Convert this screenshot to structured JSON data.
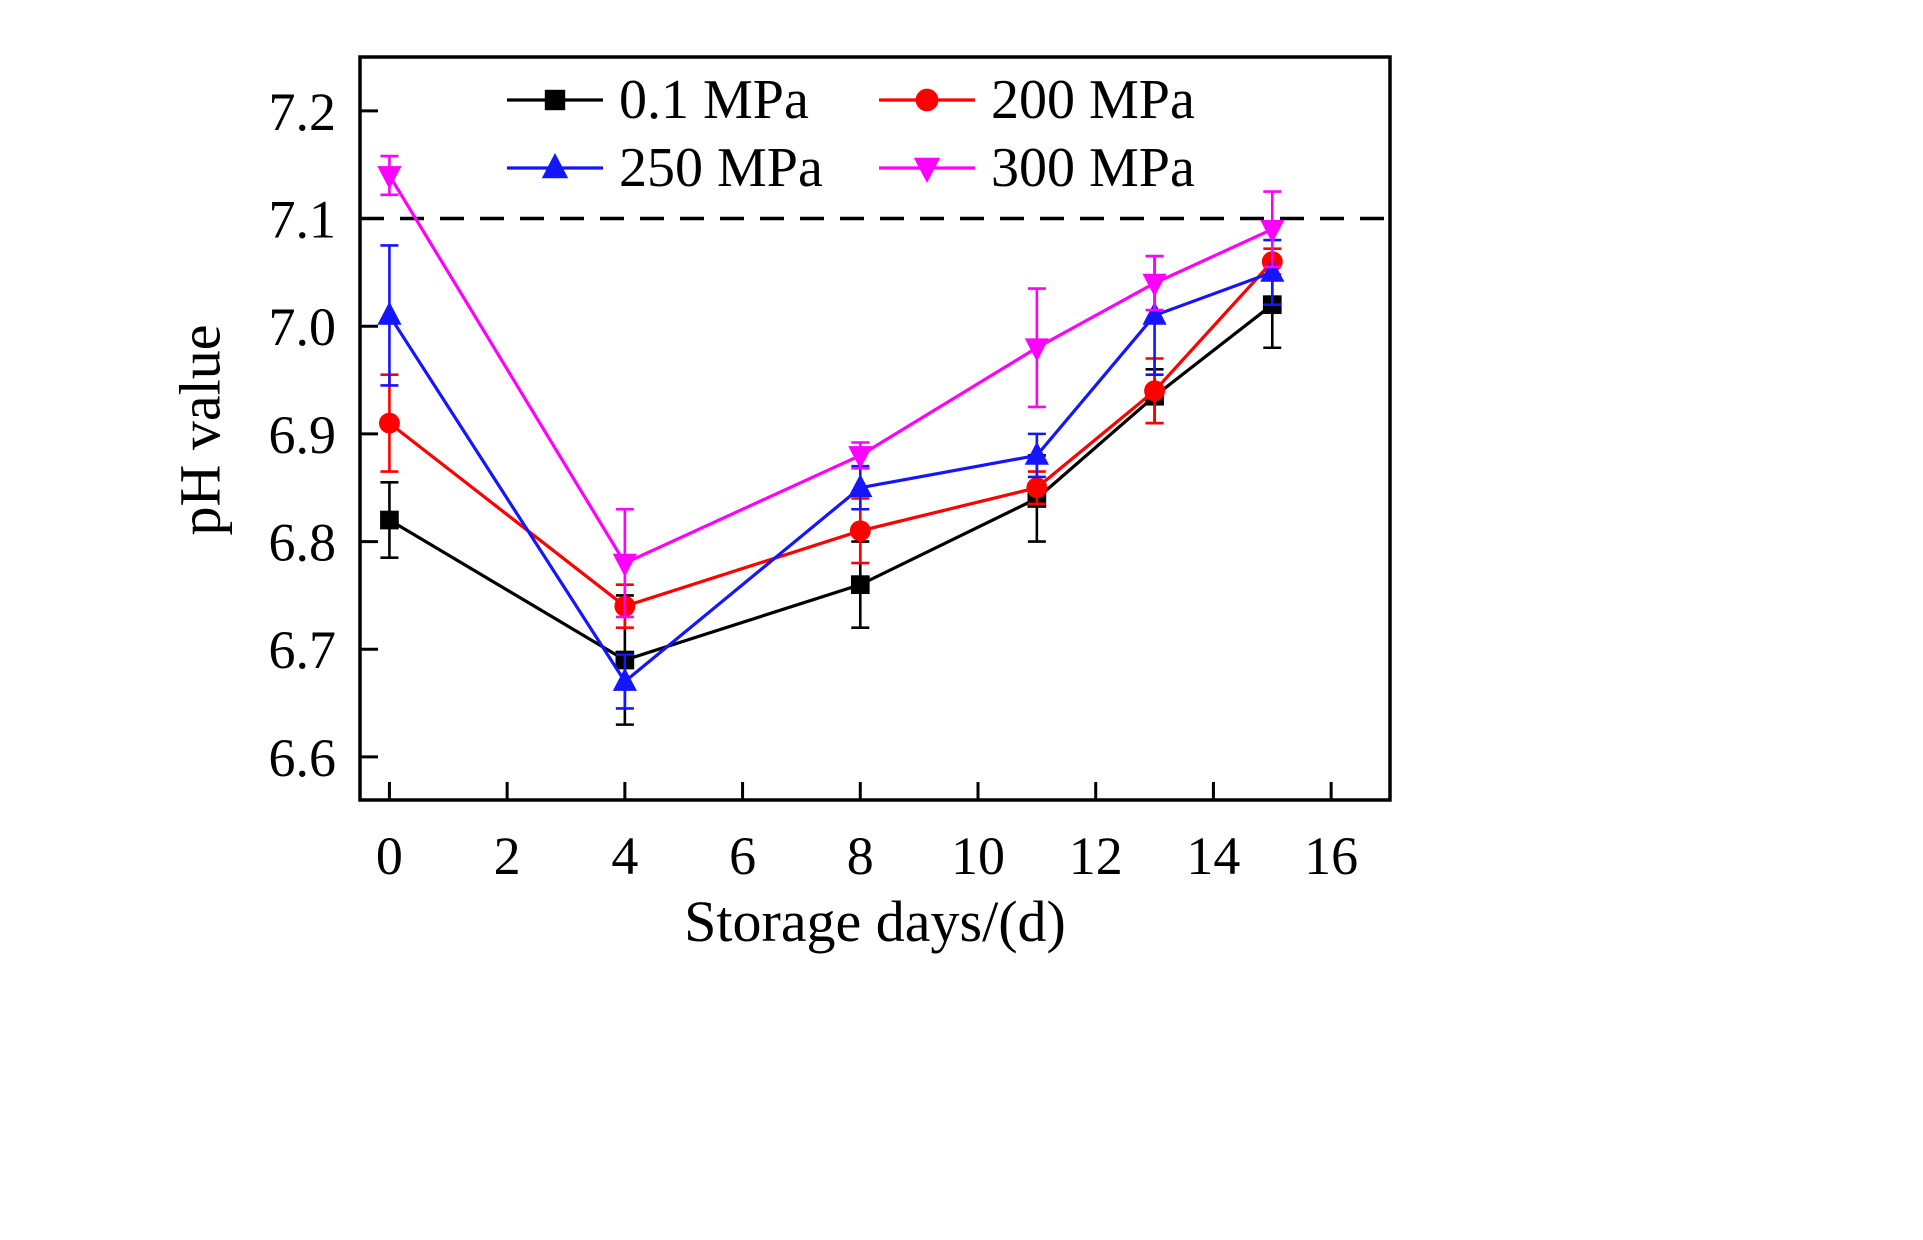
{
  "figure": {
    "background": "#ffffff"
  },
  "chart_data": {
    "type": "line",
    "title": "",
    "xlabel": "Storage days/(d)",
    "ylabel": "pH value",
    "legend_position": "top-inside",
    "grid": false,
    "x": [
      0,
      4,
      8,
      11,
      13,
      15
    ],
    "x_ticks": [
      0,
      2,
      4,
      6,
      8,
      10,
      12,
      14,
      16
    ],
    "y_ticks": [
      6.6,
      6.7,
      6.8,
      6.9,
      7.0,
      7.1,
      7.2
    ],
    "xlim": [
      -0.5,
      17
    ],
    "ylim": [
      6.56,
      7.25
    ],
    "reference_line": {
      "y": 7.1,
      "style": "dashed",
      "color": "#000000"
    },
    "series": [
      {
        "name": "0.1 MPa",
        "color": "#000000",
        "marker": "square",
        "values": [
          6.82,
          6.69,
          6.76,
          6.84,
          6.935,
          7.02
        ],
        "errors": [
          0.035,
          0.06,
          0.04,
          0.04,
          0.025,
          0.04
        ]
      },
      {
        "name": "200 MPa",
        "color": "#ff0000",
        "marker": "circle",
        "values": [
          6.91,
          6.74,
          6.81,
          6.85,
          6.94,
          7.06
        ],
        "errors": [
          0.045,
          0.02,
          0.03,
          0.015,
          0.03,
          0.012
        ]
      },
      {
        "name": "250 MPa",
        "color": "#1515ff",
        "marker": "triangle-up",
        "values": [
          7.01,
          6.67,
          6.85,
          6.88,
          7.01,
          7.05
        ],
        "errors": [
          0.065,
          0.025,
          0.02,
          0.02,
          0.055,
          0.03
        ]
      },
      {
        "name": "300 MPa",
        "color": "#ff00ff",
        "marker": "triangle-down",
        "values": [
          7.14,
          6.78,
          6.88,
          6.98,
          7.04,
          7.09
        ],
        "errors": [
          0.018,
          0.05,
          0.012,
          0.055,
          0.025,
          0.035
        ]
      }
    ]
  }
}
